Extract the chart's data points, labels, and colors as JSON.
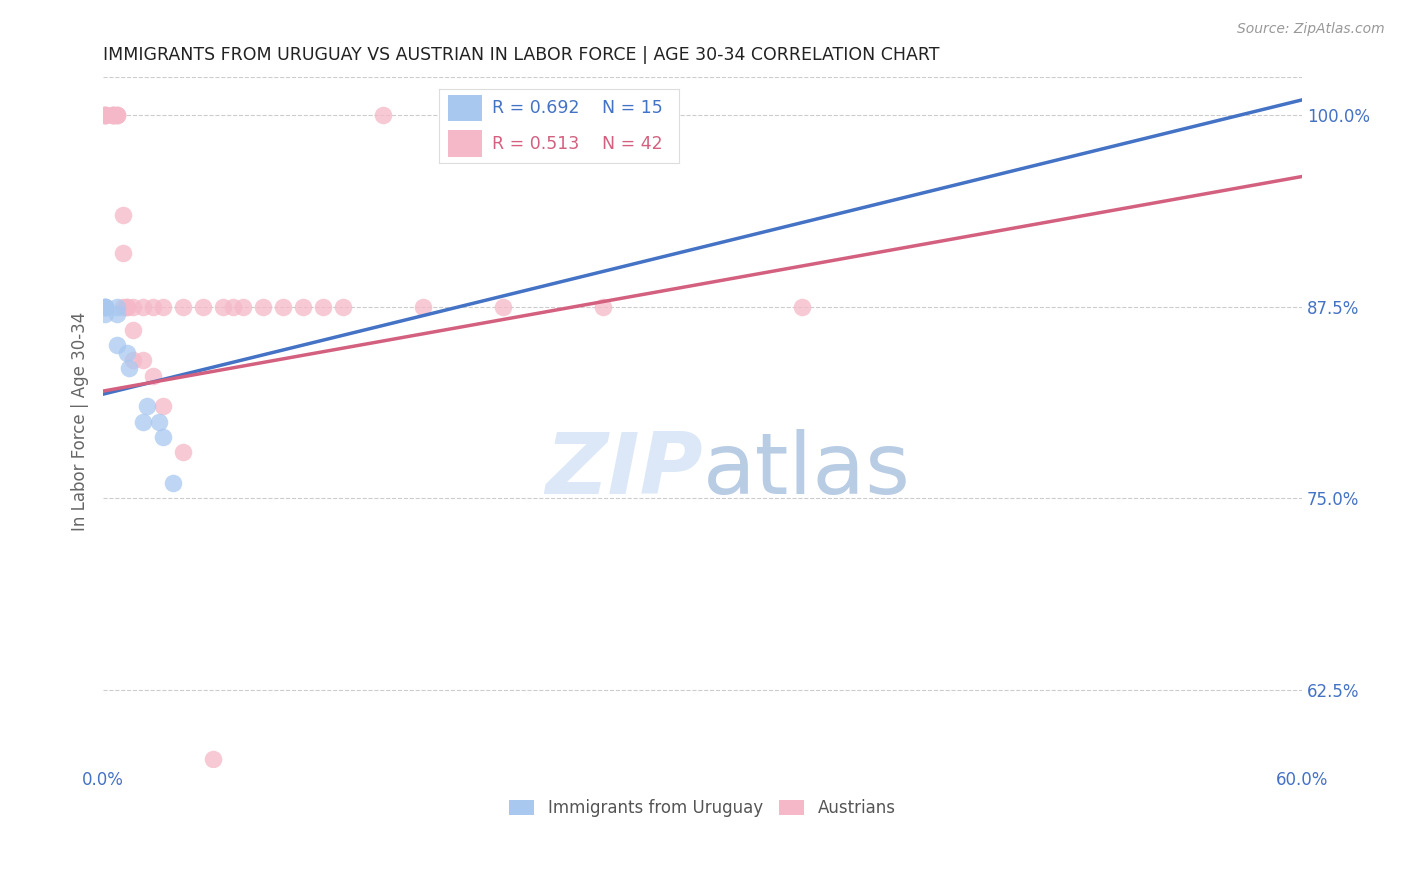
{
  "title": "IMMIGRANTS FROM URUGUAY VS AUSTRIAN IN LABOR FORCE | AGE 30-34 CORRELATION CHART",
  "source": "Source: ZipAtlas.com",
  "ylabel": "In Labor Force | Age 30-34",
  "xlim": [
    0.0,
    0.6
  ],
  "ylim": [
    0.575,
    1.025
  ],
  "yticks": [
    0.625,
    0.75,
    0.875,
    1.0
  ],
  "ytick_labels": [
    "62.5%",
    "75.0%",
    "87.5%",
    "100.0%"
  ],
  "uruguay_r": 0.692,
  "uruguay_n": 15,
  "austrian_r": 0.513,
  "austrian_n": 42,
  "uruguay_color": "#a8c8f0",
  "austrian_color": "#f5b8c8",
  "uruguay_line_color": "#4472c4",
  "austrian_line_color": "#d46080",
  "background_color": "#ffffff",
  "grid_color": "#cccccc",
  "axis_label_color": "#4472c4",
  "watermark_color": "#dce8f8",
  "legend_label_uruguay": "Immigrants from Uruguay",
  "legend_label_austrian": "Austrians",
  "uruguay_x": [
    0.001,
    0.001,
    0.001,
    0.001,
    0.001,
    0.007,
    0.007,
    0.007,
    0.012,
    0.013,
    0.02,
    0.022,
    0.028,
    0.03,
    0.035
  ],
  "uruguay_y": [
    0.875,
    0.875,
    0.875,
    0.875,
    0.87,
    0.875,
    0.87,
    0.85,
    0.845,
    0.835,
    0.8,
    0.81,
    0.8,
    0.79,
    0.76
  ],
  "austrian_x": [
    0.001,
    0.001,
    0.001,
    0.001,
    0.005,
    0.005,
    0.005,
    0.005,
    0.007,
    0.007,
    0.007,
    0.01,
    0.01,
    0.01,
    0.012,
    0.012,
    0.015,
    0.015,
    0.015,
    0.02,
    0.02,
    0.025,
    0.025,
    0.03,
    0.03,
    0.04,
    0.04,
    0.05,
    0.055,
    0.06,
    0.065,
    0.07,
    0.08,
    0.09,
    0.1,
    0.11,
    0.12,
    0.14,
    0.16,
    0.2,
    0.25,
    0.35
  ],
  "austrian_y": [
    1.0,
    1.0,
    1.0,
    1.0,
    1.0,
    1.0,
    1.0,
    1.0,
    1.0,
    1.0,
    1.0,
    0.935,
    0.91,
    0.875,
    0.875,
    0.875,
    0.875,
    0.86,
    0.84,
    0.875,
    0.84,
    0.875,
    0.83,
    0.875,
    0.81,
    0.875,
    0.78,
    0.875,
    0.58,
    0.875,
    0.875,
    0.875,
    0.875,
    0.875,
    0.875,
    0.875,
    0.875,
    1.0,
    0.875,
    0.875,
    0.875,
    0.875
  ],
  "uy_line_x0": 0.0,
  "uy_line_x1": 0.6,
  "uy_line_y0": 0.818,
  "uy_line_y1": 1.01,
  "at_line_x0": 0.0,
  "at_line_x1": 0.6,
  "at_line_y0": 0.82,
  "at_line_y1": 0.96
}
